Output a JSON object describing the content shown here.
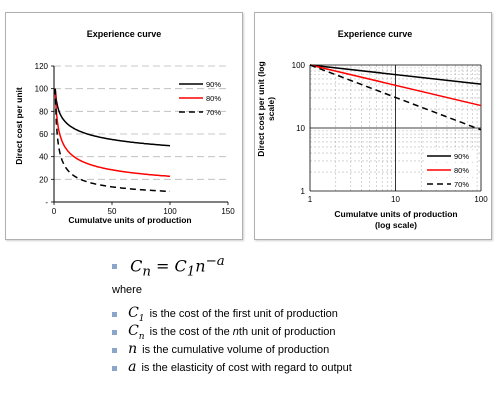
{
  "chart_data": [
    {
      "type": "line",
      "title": "Experience curve",
      "xlabel": "Cumulatve units of production",
      "ylabel": "Direct cost per unit",
      "xlim": [
        0,
        150
      ],
      "ylim": [
        0,
        120
      ],
      "x_ticks": [
        0,
        50,
        100,
        150
      ],
      "x_tick_labels": [
        "0",
        "50",
        "100",
        "150"
      ],
      "y_ticks": [
        0,
        20,
        40,
        60,
        80,
        100,
        120
      ],
      "y_tick_labels": [
        "-",
        "20",
        "40",
        "60",
        "80",
        "100",
        "120"
      ],
      "grid": "horizontal dashed",
      "legend_position": "top-right",
      "series": [
        {
          "name": "90%",
          "color": "#000000",
          "dash": "solid",
          "rate": 0.9,
          "x_range": [
            1,
            100
          ],
          "y_start": 100
        },
        {
          "name": "80%",
          "color": "#ff0000",
          "dash": "solid",
          "rate": 0.8,
          "x_range": [
            1,
            100
          ],
          "y_start": 100
        },
        {
          "name": "70%",
          "color": "#000000",
          "dash": "dashed",
          "rate": 0.7,
          "x_range": [
            1,
            100
          ],
          "y_start": 100
        }
      ]
    },
    {
      "type": "line",
      "title": "Experience curve",
      "xlabel": "Cumulatve units of production (log scale)",
      "xlabel_lines": [
        "Cumulatve units of production",
        "(log scale)"
      ],
      "ylabel": "Direct cost per unit (log scale)",
      "ylabel_lines": [
        "Direct cost per unit (log",
        "scale)"
      ],
      "x_scale": "log",
      "y_scale": "log",
      "xlim": [
        1,
        100
      ],
      "ylim": [
        1,
        100
      ],
      "x_ticks": [
        1,
        10,
        100
      ],
      "x_tick_labels": [
        "1",
        "10",
        "100"
      ],
      "y_ticks": [
        1,
        10,
        100
      ],
      "y_tick_labels": [
        "1",
        "10",
        "100"
      ],
      "grid": "dashed log grid",
      "legend_position": "bottom-right",
      "series": [
        {
          "name": "90%",
          "color": "#000000",
          "dash": "solid",
          "rate": 0.9,
          "x_range": [
            1,
            100
          ],
          "y_start": 100
        },
        {
          "name": "80%",
          "color": "#ff0000",
          "dash": "solid",
          "rate": 0.8,
          "x_range": [
            1,
            100
          ],
          "y_start": 100
        },
        {
          "name": "70%",
          "color": "#000000",
          "dash": "dashed",
          "rate": 0.7,
          "x_range": [
            1,
            100
          ],
          "y_start": 100
        }
      ]
    }
  ],
  "formula": {
    "lhs_symbol": "C",
    "lhs_sub": "n",
    "equals": "=",
    "rhs_symbol": "C",
    "rhs_sub": "1",
    "rhs_base": "n",
    "rhs_exp": "−a"
  },
  "where_label": "where",
  "definitions": [
    {
      "symbol": "C",
      "sub": "1",
      "text": "is the cost of the first unit of production"
    },
    {
      "symbol": "C",
      "sub": "n",
      "text_before": "is the cost of the ",
      "text_italic": "n",
      "text_after": "th unit of production"
    },
    {
      "symbol": "n",
      "sub": "",
      "text": "is the cumulative volume of production"
    },
    {
      "symbol": "a",
      "sub": "",
      "text": "is the elasticity of cost with regard to output"
    }
  ],
  "colors": {
    "bullet": "#8aa6c8",
    "grid": "#b8b8b8",
    "frame": "#b0b0b0"
  }
}
